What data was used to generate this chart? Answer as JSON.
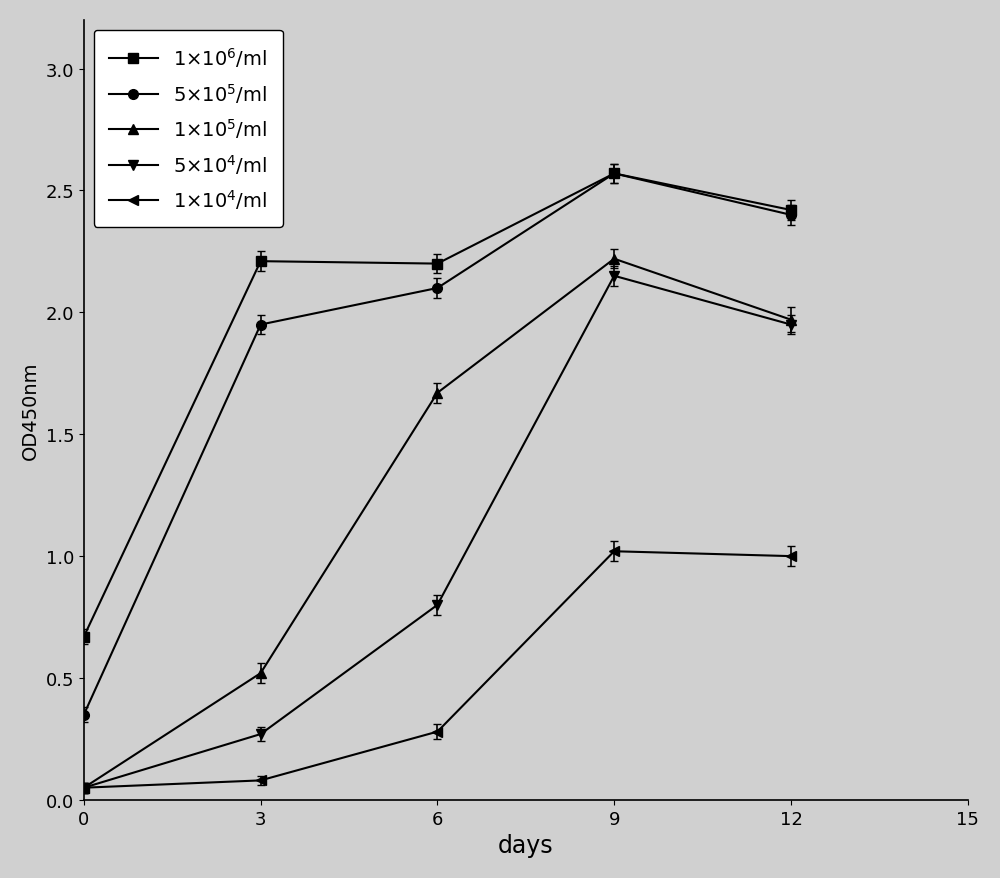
{
  "series": [
    {
      "label": "1×10$^{6}$/ml",
      "x": [
        0,
        3,
        6,
        9,
        12
      ],
      "y": [
        0.67,
        2.21,
        2.2,
        2.57,
        2.42
      ],
      "yerr": [
        0.03,
        0.04,
        0.04,
        0.04,
        0.04
      ],
      "marker": "s"
    },
    {
      "label": "5×10$^{5}$/ml",
      "x": [
        0,
        3,
        6,
        9,
        12
      ],
      "y": [
        0.35,
        1.95,
        2.1,
        2.57,
        2.4
      ],
      "yerr": [
        0.03,
        0.04,
        0.04,
        0.04,
        0.04
      ],
      "marker": "o"
    },
    {
      "label": "1×10$^{5}$/ml",
      "x": [
        0,
        3,
        6,
        9,
        12
      ],
      "y": [
        0.05,
        0.52,
        1.67,
        2.22,
        1.97
      ],
      "yerr": [
        0.02,
        0.04,
        0.04,
        0.04,
        0.05
      ],
      "marker": "^"
    },
    {
      "label": "5×10$^{4}$/ml",
      "x": [
        0,
        3,
        6,
        9,
        12
      ],
      "y": [
        0.05,
        0.27,
        0.8,
        2.15,
        1.95
      ],
      "yerr": [
        0.02,
        0.03,
        0.04,
        0.04,
        0.04
      ],
      "marker": "v"
    },
    {
      "label": "1×10$^{4}$/ml",
      "x": [
        0,
        3,
        6,
        9,
        12
      ],
      "y": [
        0.05,
        0.08,
        0.28,
        1.02,
        1.0
      ],
      "yerr": [
        0.02,
        0.02,
        0.03,
        0.04,
        0.04
      ],
      "marker": "<"
    }
  ],
  "xlabel": "days",
  "ylabel": "OD450nm",
  "xlim": [
    0,
    15
  ],
  "ylim": [
    0.0,
    3.2
  ],
  "xticks": [
    0,
    3,
    6,
    9,
    12,
    15
  ],
  "yticks": [
    0.0,
    0.5,
    1.0,
    1.5,
    2.0,
    2.5,
    3.0
  ],
  "color": "black",
  "linewidth": 1.5,
  "markersize": 7,
  "legend_loc": "upper left",
  "legend_fontsize": 14,
  "fig_facecolor": "#d0d0d0",
  "axes_facecolor": "#d0d0d0"
}
